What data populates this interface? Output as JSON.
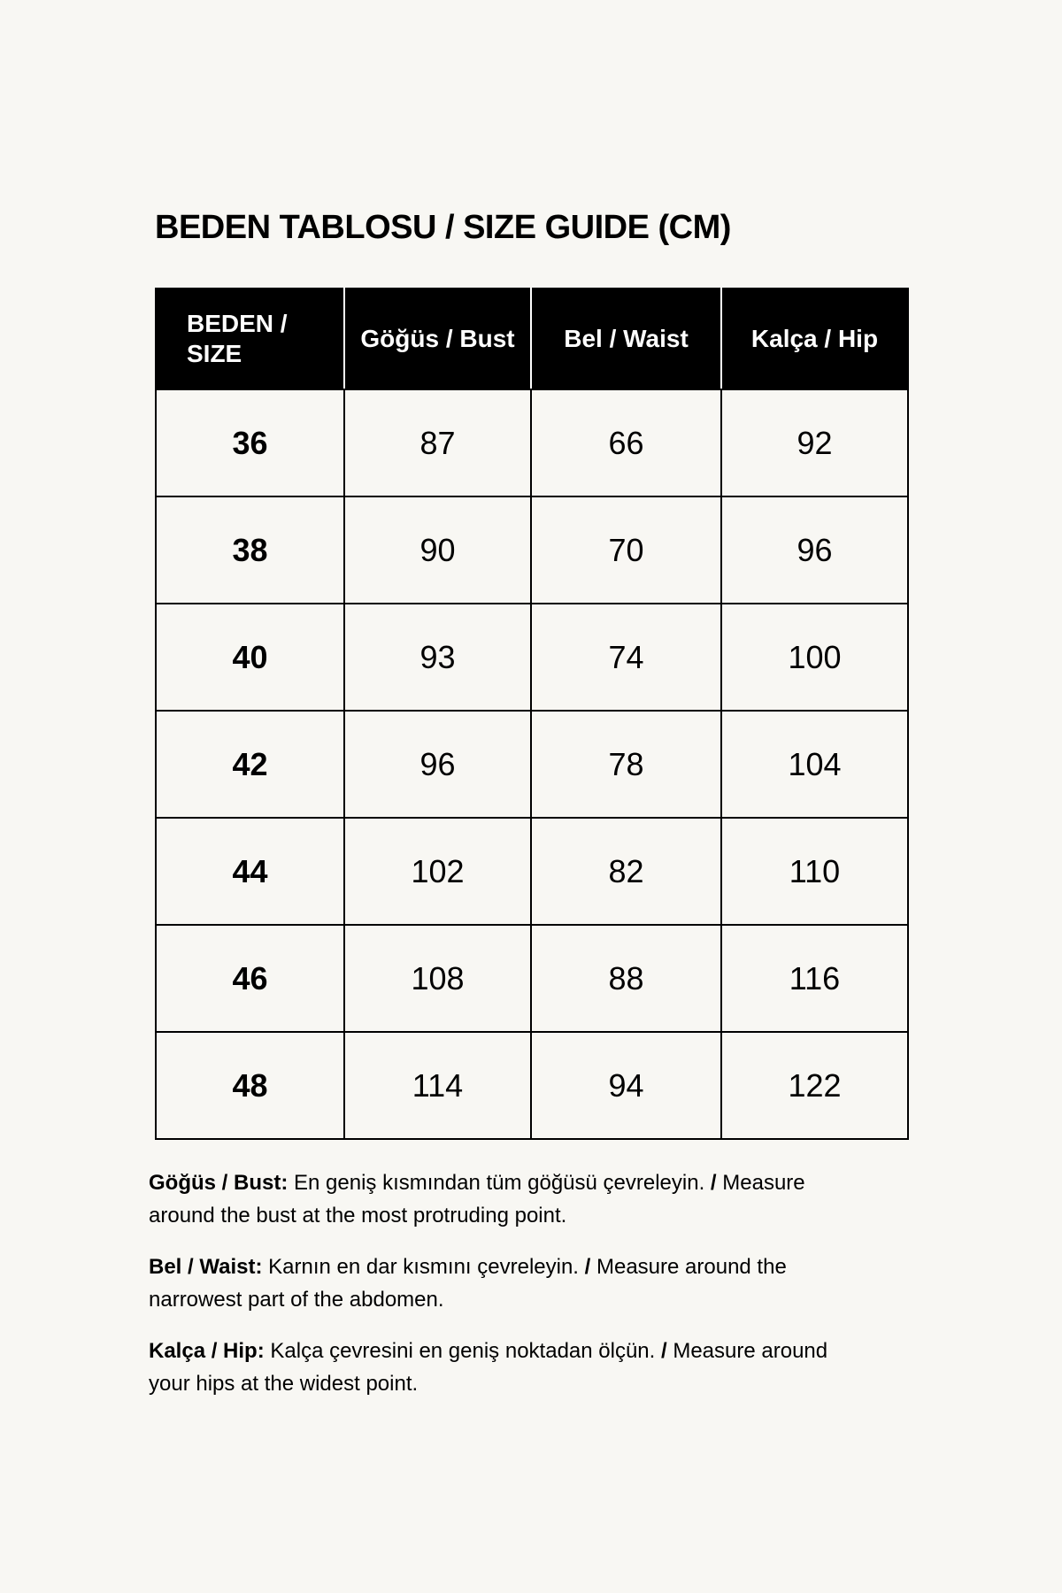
{
  "title": "BEDEN TABLOSU / SIZE GUIDE (CM)",
  "table": {
    "headers": [
      "BEDEN / SIZE",
      "Göğüs / Bust",
      "Bel / Waist",
      "Kalça / Hip"
    ],
    "rows": [
      [
        "36",
        "87",
        "66",
        "92"
      ],
      [
        "38",
        "90",
        "70",
        "96"
      ],
      [
        "40",
        "93",
        "74",
        "100"
      ],
      [
        "42",
        "96",
        "78",
        "104"
      ],
      [
        "44",
        "102",
        "82",
        "110"
      ],
      [
        "46",
        "108",
        "88",
        "116"
      ],
      [
        "48",
        "114",
        "94",
        "122"
      ]
    ]
  },
  "notes": [
    {
      "label": "Göğüs / Bust:",
      "tr": "En geniş kısmından tüm göğüsü çevreleyin.",
      "sep": "/",
      "en": "Measure around the bust at the most protruding point."
    },
    {
      "label": "Bel / Waist:",
      "tr": "Karnın en dar kısmını çevreleyin.",
      "sep": "/",
      "en": "Measure around the narrowest part of the abdomen."
    },
    {
      "label": "Kalça / Hip:",
      "tr": "Kalça çevresini en geniş noktadan ölçün.",
      "sep": "/",
      "en": "Measure around your hips at the widest point."
    }
  ]
}
